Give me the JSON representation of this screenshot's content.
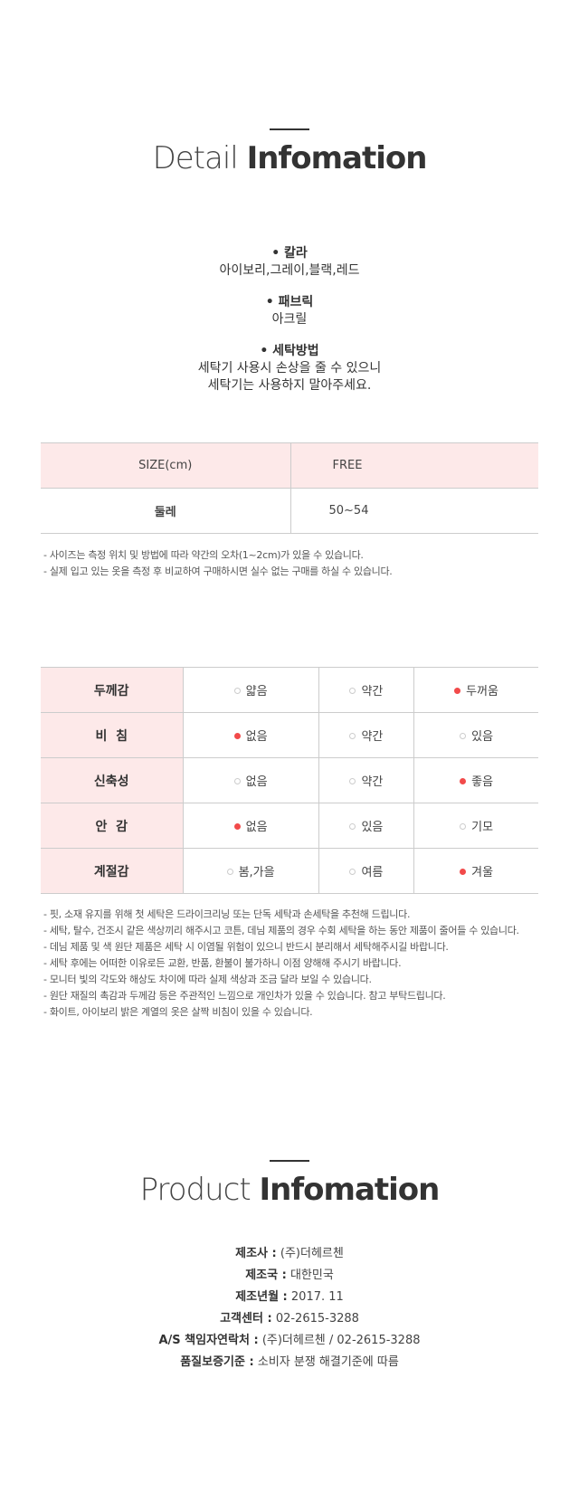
{
  "detail": {
    "title_light": "Detail",
    "title_bold": "Infomation",
    "items": [
      {
        "label": "• 칼라",
        "value": "아이보리,그레이,블랙,레드"
      },
      {
        "label": "• 패브릭",
        "value": "아크릴"
      },
      {
        "label": "• 세탁방법",
        "value": "세탁기 사용시 손상을 줄 수 있으니",
        "value2": "세탁기는 사용하지 말아주세요."
      }
    ]
  },
  "size_table": {
    "header": [
      "SIZE(cm)",
      "FREE"
    ],
    "rows": [
      [
        "둘레",
        "50~54"
      ]
    ]
  },
  "size_notes": [
    "- 사이즈는 측정 위치 및 방법에 따라 약간의 오차(1~2cm)가 있을 수 있습니다.",
    "- 실제 입고 있는 옷을 측정 후 비교하여 구매하시면 실수 없는 구매를 하실 수 있습니다."
  ],
  "accent_color": "#f24a4a",
  "fit_table": [
    {
      "label": "두께감",
      "options": [
        "얇음",
        "약간",
        "두꺼움"
      ],
      "selected": 2
    },
    {
      "label": "비  침",
      "options": [
        "없음",
        "약간",
        "있음"
      ],
      "selected": 0
    },
    {
      "label": "신축성",
      "options": [
        "없음",
        "약간",
        "좋음"
      ],
      "selected": 2
    },
    {
      "label": "안  감",
      "options": [
        "없음",
        "있음",
        "기모"
      ],
      "selected": 0
    },
    {
      "label": "계절감",
      "options": [
        "봄,가을",
        "여름",
        "겨울"
      ],
      "selected": 2
    }
  ],
  "care_notes": [
    "- 핏, 소재 유지를 위해 첫 세탁은 드라이크리닝 또는 단독 세탁과 손세탁을 추천해 드립니다.",
    "- 세탁, 탈수, 건조시 같은 색상끼리 해주시고 코튼, 데님 제품의 경우 수회 세탁을 하는 동안 제품이 줄어들 수 있습니다.",
    "- 데님 제품 및 색 원단 제품은 세탁 시 이염될 위험이 있으니 반드시 분리해서 세탁해주시길 바랍니다.",
    "- 세탁 후에는 어떠한 이유로든 교환, 반품, 환불이 불가하니 이점 양해해 주시기 바랍니다.",
    "- 모니터 빛의 각도와 해상도 차이에 따라 실제 색상과 조금 달라 보일 수 있습니다.",
    "- 원단 재질의 촉감과 두께감 등은 주관적인 느낌으로 개인차가 있을 수 있습니다. 참고 부탁드립니다.",
    "- 화이트, 아이보리 밝은 계열의 옷은 살짝 비침이 있을 수 있습니다."
  ],
  "product": {
    "title_light": "Product",
    "title_bold": "Infomation",
    "rows": [
      {
        "k": "제조사 :",
        "v": "(주)더헤르첸"
      },
      {
        "k": "제조국 :",
        "v": "대한민국"
      },
      {
        "k": "제조년월 :",
        "v": "2017. 11"
      },
      {
        "k": "고객센터 :",
        "v": "02-2615-3288"
      },
      {
        "k": "A/S 책임자연락처 :",
        "v": "(주)더헤르첸 / 02-2615-3288"
      },
      {
        "k": "품질보증기준 :",
        "v": "소비자 분쟁 해결기준에 따름"
      }
    ]
  }
}
